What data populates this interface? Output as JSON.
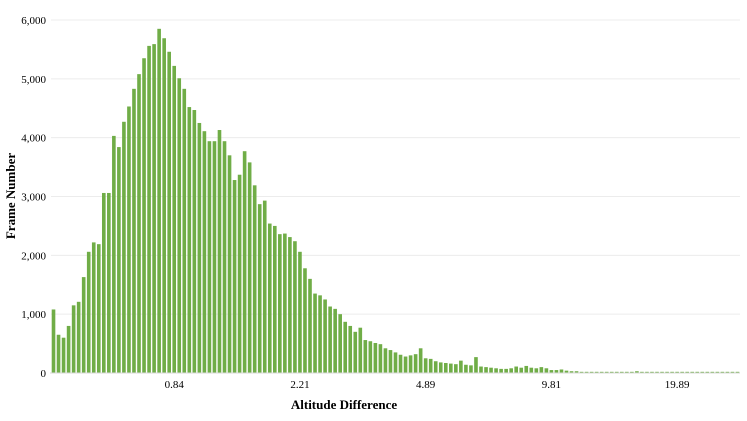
{
  "chart_data": {
    "type": "bar",
    "title": "",
    "xlabel": "Altitude Difference",
    "ylabel": "Frame Number",
    "ylim": [
      0,
      6000
    ],
    "yticks": [
      "0",
      "1,000",
      "2,000",
      "3,000",
      "4,000",
      "5,000",
      "6,000"
    ],
    "xtick_labels": [
      {
        "label": "0.84",
        "bin_index": 24
      },
      {
        "label": "2.21",
        "bin_index": 49
      },
      {
        "label": "4.89",
        "bin_index": 74
      },
      {
        "label": "9.81",
        "bin_index": 99
      },
      {
        "label": "19.89",
        "bin_index": 124
      }
    ],
    "grid": "horizontal",
    "bar_color": "#70ad47",
    "values": [
      1080,
      650,
      600,
      800,
      1150,
      1210,
      1630,
      2060,
      2220,
      2190,
      3060,
      3060,
      4030,
      3840,
      4270,
      4530,
      4830,
      5080,
      5350,
      5560,
      5590,
      5850,
      5690,
      5460,
      5220,
      5010,
      4830,
      4520,
      4470,
      4250,
      4110,
      3940,
      3940,
      4130,
      3940,
      3700,
      3280,
      3370,
      3770,
      3580,
      3190,
      2870,
      2930,
      2540,
      2500,
      2360,
      2370,
      2310,
      2240,
      2060,
      1780,
      1600,
      1350,
      1320,
      1250,
      1130,
      1090,
      1000,
      870,
      800,
      700,
      770,
      560,
      540,
      510,
      490,
      420,
      390,
      350,
      310,
      280,
      300,
      320,
      420,
      250,
      240,
      200,
      180,
      170,
      160,
      150,
      210,
      140,
      130,
      270,
      110,
      100,
      90,
      80,
      70,
      70,
      80,
      110,
      90,
      120,
      90,
      80,
      100,
      80,
      50,
      50,
      60,
      40,
      30,
      30,
      20,
      20,
      20,
      20,
      20,
      20,
      20,
      20,
      20,
      20,
      20,
      30,
      20,
      20,
      20,
      20,
      20,
      20,
      20,
      20,
      20,
      20,
      20,
      20,
      20,
      20,
      20,
      20,
      20,
      20,
      20,
      20
    ]
  }
}
